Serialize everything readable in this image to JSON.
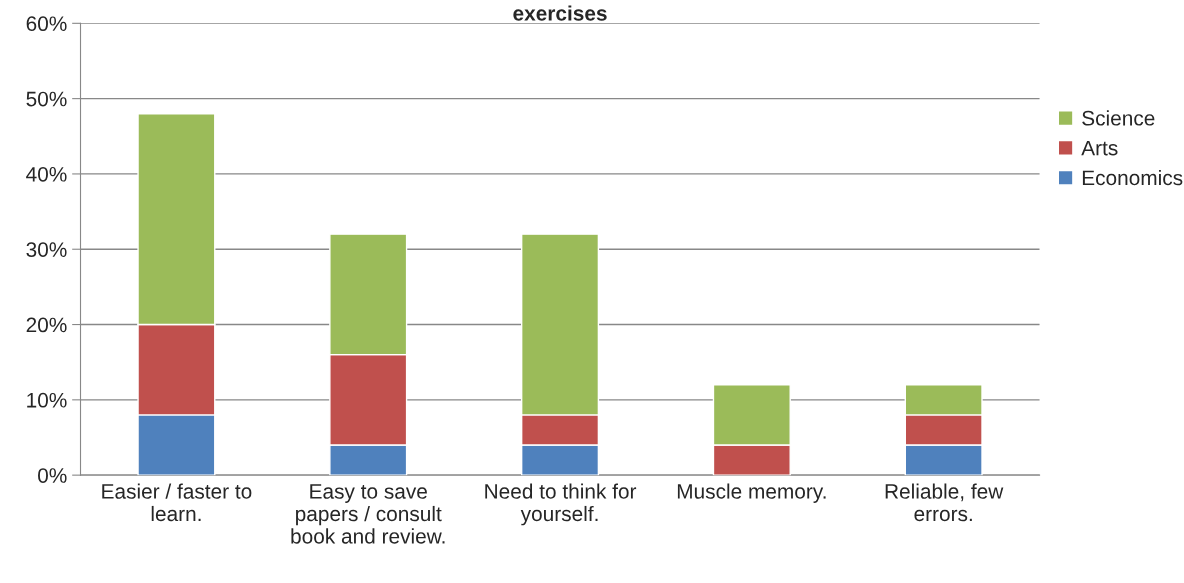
{
  "chart_data": {
    "type": "bar",
    "title": "exercises",
    "stacked": true,
    "categories": [
      "Easier / faster to learn.",
      "Easy to save papers / consult book and review.",
      "Need to think for yourself.",
      "Muscle memory.",
      "Reliable, few errors."
    ],
    "series": [
      {
        "name": "Economics",
        "color": "#4f81bd",
        "values": [
          8,
          4,
          4,
          0,
          4
        ]
      },
      {
        "name": "Arts",
        "color": "#c0504d",
        "values": [
          12,
          12,
          4,
          4,
          4
        ]
      },
      {
        "name": "Science",
        "color": "#9bbb59",
        "values": [
          28,
          16,
          24,
          8,
          4
        ]
      }
    ],
    "ylim": [
      0,
      60
    ],
    "yticks": [
      {
        "value": 0,
        "label": "0%"
      },
      {
        "value": 10,
        "label": "10%"
      },
      {
        "value": 20,
        "label": "20%"
      },
      {
        "value": 30,
        "label": "30%"
      },
      {
        "value": 40,
        "label": "40%"
      },
      {
        "value": 50,
        "label": "50%"
      },
      {
        "value": 60,
        "label": "60%"
      }
    ],
    "grid": "y",
    "legend": "right"
  }
}
